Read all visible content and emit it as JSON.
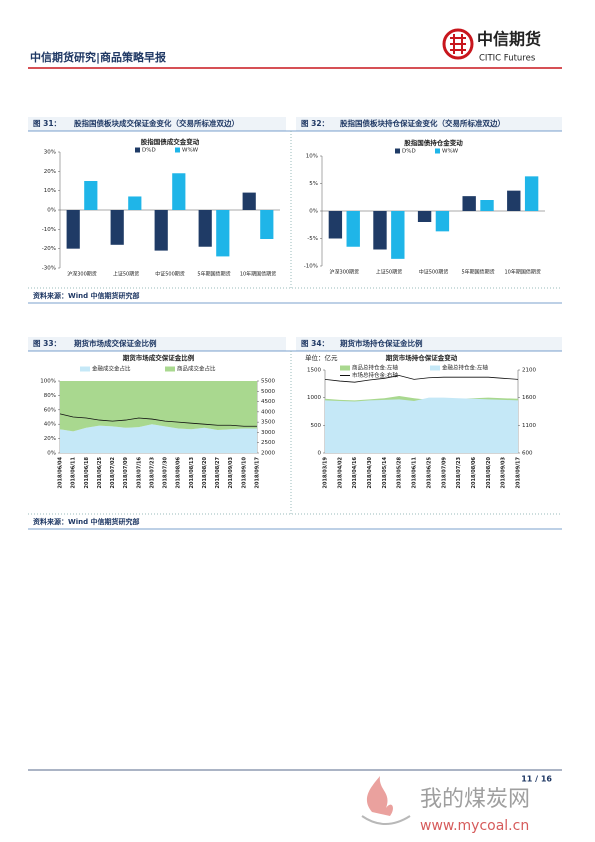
{
  "header": {
    "title": "中信期货研究|商品策略早报",
    "logo_cn": "中信期货",
    "logo_en": "CITIC Futures"
  },
  "figures": [
    {
      "number": "图 31：",
      "caption": "股指国债板块成交保证金变化（交易所标准双边）"
    },
    {
      "number": "图 32：",
      "caption": "股指国债板块持仓保证金变化（交易所标准双边）"
    },
    {
      "number": "图 33：",
      "caption": "期货市场成交保证金比例"
    },
    {
      "number": "图 34：",
      "caption": "期货市场持仓保证金比例"
    }
  ],
  "sources": [
    "资料来源：Wind 中信期货研究部",
    "资料来源：Wind 中信期货研究部"
  ],
  "footer": {
    "page": "11 / 16"
  },
  "watermark": {
    "name": "我的煤炭网",
    "url": "www.mycoal.cn"
  },
  "chart_data": [
    {
      "type": "bar",
      "title": "股指国债成交金变动",
      "categories": [
        "沪深300期货",
        "上证50期货",
        "中证500期货",
        "5年期国债期货",
        "10年期国债期货"
      ],
      "series": [
        {
          "name": "D%D",
          "color": "#1f3b66",
          "values": [
            -20,
            -18,
            -21,
            -19,
            9
          ]
        },
        {
          "name": "W%W",
          "color": "#1fb5e8",
          "values": [
            15,
            7,
            19,
            -24,
            -15
          ]
        }
      ],
      "ylim": [
        -30,
        30
      ],
      "yticks": [
        {
          "value": -30,
          "label": "-30%"
        },
        {
          "value": -20,
          "label": "-20%"
        },
        {
          "value": -10,
          "label": "-10%"
        },
        {
          "value": 0,
          "label": "0%"
        },
        {
          "value": 10,
          "label": "10%"
        },
        {
          "value": 20,
          "label": "20%"
        },
        {
          "value": 30,
          "label": "30%"
        }
      ]
    },
    {
      "type": "bar",
      "title": "股指国债持仓金变动",
      "categories": [
        "沪深300期货",
        "上证50期货",
        "中证500期货",
        "5年期国债期货",
        "10年期国债期货"
      ],
      "series": [
        {
          "name": "D%D",
          "color": "#1f3b66",
          "values": [
            -5,
            -7,
            -2,
            2.7,
            3.7
          ]
        },
        {
          "name": "W%W",
          "color": "#1fb5e8",
          "values": [
            -6.5,
            -8.7,
            -3.7,
            2,
            6.3
          ]
        }
      ],
      "ylim": [
        -10,
        10
      ],
      "yticks": [
        {
          "value": -10,
          "label": "-10%"
        },
        {
          "value": -5,
          "label": "-5%"
        },
        {
          "value": 0,
          "label": "0%"
        },
        {
          "value": 5,
          "label": "5%"
        },
        {
          "value": 10,
          "label": "10%"
        }
      ]
    },
    {
      "type": "area",
      "title": "期货市场成交保证金比例",
      "stacked": true,
      "x": [
        "2018/06/04",
        "2018/06/11",
        "2018/06/18",
        "2018/06/25",
        "2018/07/02",
        "2018/07/09",
        "2018/07/16",
        "2018/07/23",
        "2018/07/30",
        "2018/08/06",
        "2018/08/13",
        "2018/08/20",
        "2018/08/27",
        "2018/09/03",
        "2018/09/10",
        "2018/09/17"
      ],
      "series": [
        {
          "name": "金融成交金占比",
          "kind": "area",
          "color": "#c5e8f7",
          "values": [
            33,
            30,
            35,
            38,
            37,
            35,
            36,
            40,
            37,
            34,
            33,
            35,
            32,
            33,
            34,
            34
          ]
        },
        {
          "name": "商品成交金占比",
          "kind": "area",
          "color": "#a9d88f",
          "values": [
            67,
            70,
            65,
            62,
            63,
            65,
            64,
            60,
            63,
            66,
            67,
            65,
            68,
            67,
            66,
            66
          ]
        },
        {
          "kind": "line",
          "axis": "y2",
          "color": "#111111",
          "values": [
            3900,
            3750,
            3700,
            3600,
            3550,
            3600,
            3700,
            3650,
            3550,
            3500,
            3450,
            3400,
            3350,
            3350,
            3300,
            3300
          ]
        }
      ],
      "ylim": [
        0,
        100
      ],
      "yticks": [
        {
          "value": 0,
          "label": "0%"
        },
        {
          "value": 20,
          "label": "20%"
        },
        {
          "value": 40,
          "label": "40%"
        },
        {
          "value": 60,
          "label": "60%"
        },
        {
          "value": 80,
          "label": "80%"
        },
        {
          "value": 100,
          "label": "100%"
        }
      ],
      "y2lim": [
        2000,
        5500
      ],
      "y2ticks": [
        2000,
        2500,
        3000,
        3500,
        4000,
        4500,
        5000,
        5500
      ]
    },
    {
      "type": "area",
      "title": "期货市场持仓保证金变动",
      "unit": "单位：亿元",
      "stacked": false,
      "x": [
        "2018/03/19",
        "2018/04/02",
        "2018/04/16",
        "2018/04/30",
        "2018/05/14",
        "2018/05/28",
        "2018/06/11",
        "2018/06/25",
        "2018/07/09",
        "2018/07/23",
        "2018/08/06",
        "2018/08/20",
        "2018/09/03",
        "2018/09/17"
      ],
      "series": [
        {
          "name": "商品总持仓金:左轴",
          "kind": "area",
          "color": "#a9d88f",
          "values": [
            980,
            960,
            950,
            970,
            990,
            1030,
            990,
            960,
            970,
            980,
            990,
            1000,
            990,
            980
          ]
        },
        {
          "name": "金融总持仓金:左轴",
          "kind": "area",
          "color": "#c5e8f7",
          "values": [
            950,
            940,
            930,
            950,
            960,
            970,
            940,
            1000,
            1000,
            990,
            980,
            970,
            960,
            950
          ]
        },
        {
          "name": "市场总持仓金:右轴",
          "kind": "line",
          "axis": "y2",
          "color": "#111111",
          "values": [
            1930,
            1900,
            1880,
            1920,
            1950,
            2000,
            1930,
            1960,
            1970,
            1970,
            1970,
            1970,
            1950,
            1930
          ]
        }
      ],
      "ylim": [
        0,
        1500
      ],
      "yticks": [
        0,
        500,
        1000,
        1500
      ],
      "y2lim": [
        600,
        2100
      ],
      "y2ticks": [
        600,
        1100,
        1600,
        2100
      ]
    }
  ]
}
